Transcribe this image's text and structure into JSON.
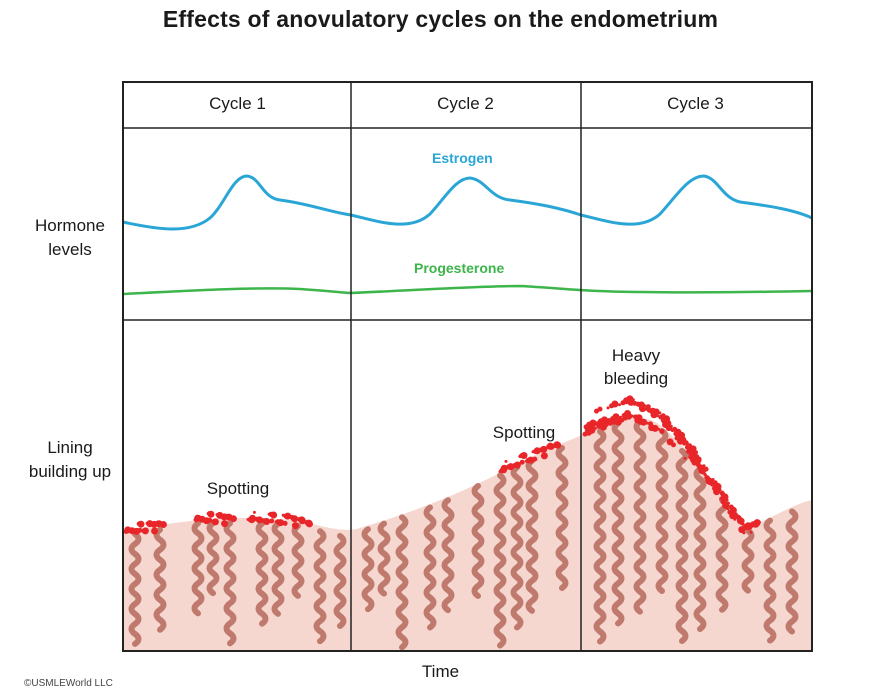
{
  "title": "Effects of anovulatory cycles on the endometrium",
  "cycles": [
    "Cycle 1",
    "Cycle 2",
    "Cycle 3"
  ],
  "row_labels": {
    "hormone": "Hormone levels",
    "lining": "Lining building up"
  },
  "curves": {
    "estrogen": {
      "label": "Estrogen",
      "color": "#2aa6d6"
    },
    "progesterone": {
      "label": "Progesterone",
      "color": "#3cb54a"
    }
  },
  "annotations": {
    "spotting_1": "Spotting",
    "spotting_2": "Spotting",
    "heavy_bleeding": "Heavy bleeding"
  },
  "x_axis": "Time",
  "copyright": "©USMLEWorld LLC",
  "colors": {
    "tissue": "#f6d7d0",
    "gland": "#b56a5c",
    "blood": "#e8262a",
    "grid": "#222222"
  }
}
